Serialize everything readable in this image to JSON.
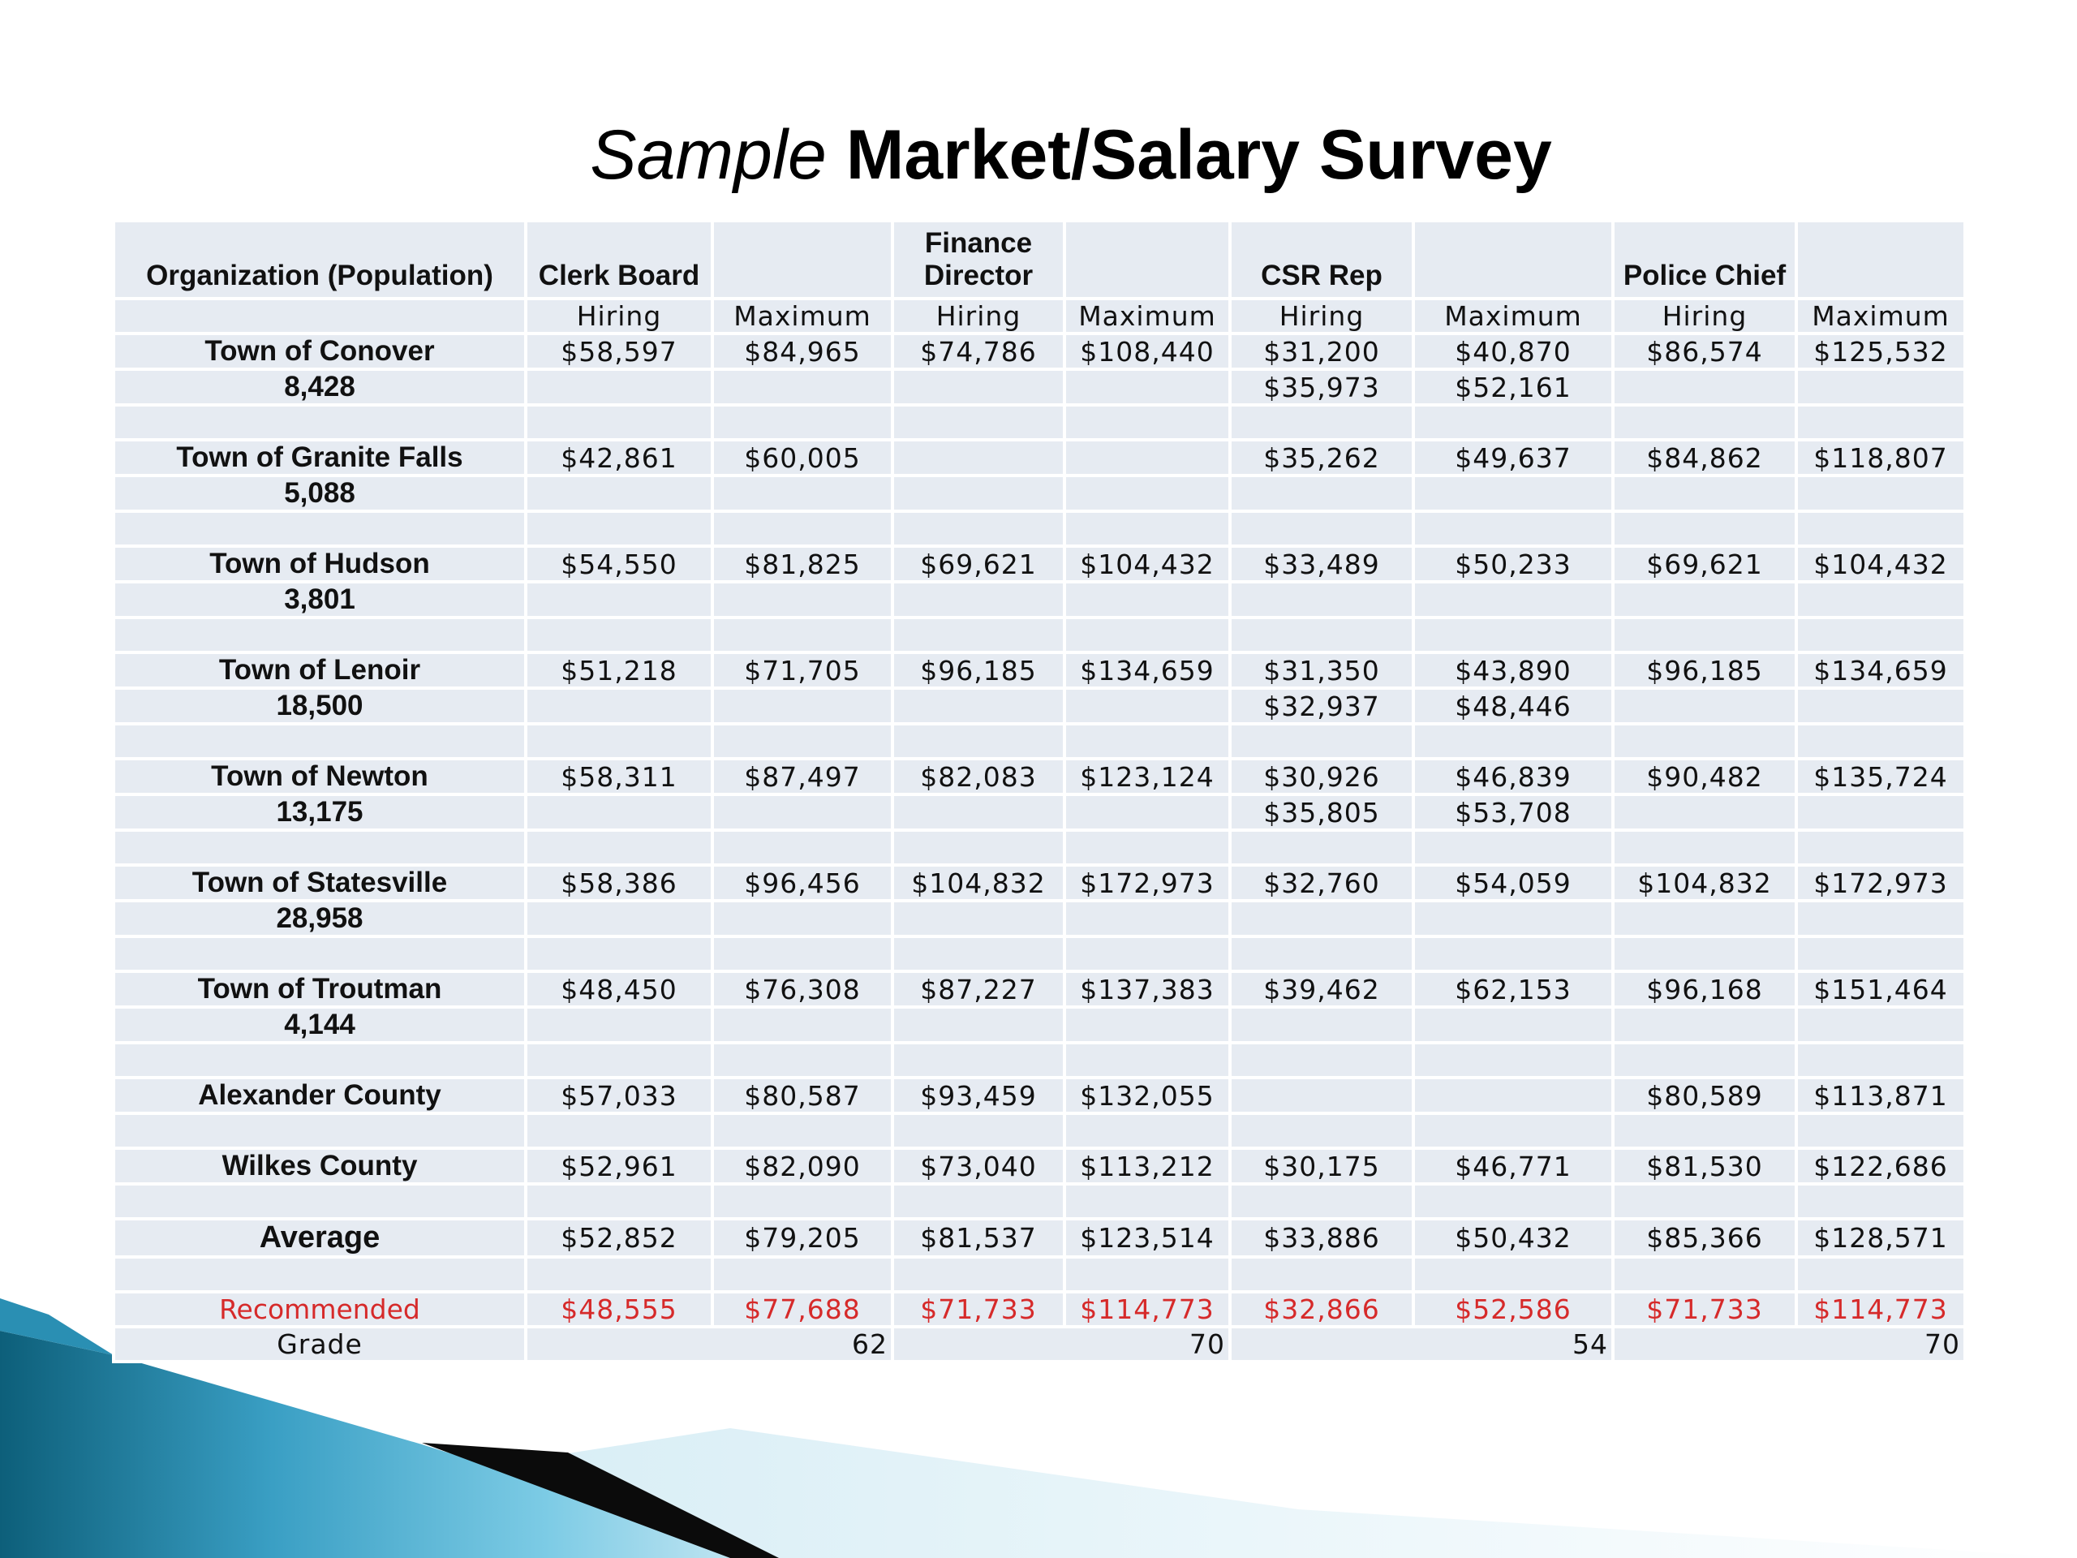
{
  "title": {
    "italic": "Sample",
    "bold": "Market/Salary Survey"
  },
  "headers": {
    "organization": "Organization (Population)",
    "clerk_board": "Clerk Board",
    "finance_director": "Finance Director",
    "csr_rep": "CSR Rep",
    "police_chief": "Police Chief"
  },
  "subheaders": [
    "Hiring",
    "Maximum",
    "Hiring",
    "Maximum",
    "Hiring",
    "Maximum",
    "Hiring",
    "Maximum"
  ],
  "rows": [
    {
      "name": "Town of Conover",
      "values": [
        "$58,597",
        "$84,965",
        "$74,786",
        "$108,440",
        "$31,200",
        "$40,870",
        "$86,574",
        "$125,532"
      ]
    },
    {
      "name": "8,428",
      "values": [
        "",
        "",
        "",
        "",
        "$35,973",
        "$52,161",
        "",
        ""
      ]
    },
    {
      "name": "",
      "values": [
        "",
        "",
        "",
        "",
        "",
        "",
        "",
        ""
      ]
    },
    {
      "name": "Town of Granite Falls",
      "values": [
        "$42,861",
        "$60,005",
        "",
        "",
        "$35,262",
        "$49,637",
        "$84,862",
        "$118,807"
      ]
    },
    {
      "name": "5,088",
      "values": [
        "",
        "",
        "",
        "",
        "",
        "",
        "",
        ""
      ]
    },
    {
      "name": "",
      "values": [
        "",
        "",
        "",
        "",
        "",
        "",
        "",
        ""
      ]
    },
    {
      "name": "Town of Hudson",
      "values": [
        "$54,550",
        "$81,825",
        "$69,621",
        "$104,432",
        "$33,489",
        "$50,233",
        "$69,621",
        "$104,432"
      ]
    },
    {
      "name": "3,801",
      "values": [
        "",
        "",
        "",
        "",
        "",
        "",
        "",
        ""
      ]
    },
    {
      "name": "",
      "values": [
        "",
        "",
        "",
        "",
        "",
        "",
        "",
        ""
      ]
    },
    {
      "name": "Town of Lenoir",
      "values": [
        "$51,218",
        "$71,705",
        "$96,185",
        "$134,659",
        "$31,350",
        "$43,890",
        "$96,185",
        "$134,659"
      ]
    },
    {
      "name": "18,500",
      "values": [
        "",
        "",
        "",
        "",
        "$32,937",
        "$48,446",
        "",
        ""
      ]
    },
    {
      "name": "",
      "values": [
        "",
        "",
        "",
        "",
        "",
        "",
        "",
        ""
      ]
    },
    {
      "name": "Town of Newton",
      "values": [
        "$58,311",
        "$87,497",
        "$82,083",
        "$123,124",
        "$30,926",
        "$46,839",
        "$90,482",
        "$135,724"
      ]
    },
    {
      "name": "13,175",
      "values": [
        "",
        "",
        "",
        "",
        "$35,805",
        "$53,708",
        "",
        ""
      ]
    },
    {
      "name": "",
      "values": [
        "",
        "",
        "",
        "",
        "",
        "",
        "",
        ""
      ]
    },
    {
      "name": "Town of Statesville",
      "values": [
        "$58,386",
        "$96,456",
        "$104,832",
        "$172,973",
        "$32,760",
        "$54,059",
        "$104,832",
        "$172,973"
      ]
    },
    {
      "name": "28,958",
      "values": [
        "",
        "",
        "",
        "",
        "",
        "",
        "",
        ""
      ]
    },
    {
      "name": "",
      "values": [
        "",
        "",
        "",
        "",
        "",
        "",
        "",
        ""
      ]
    },
    {
      "name": "Town of Troutman",
      "values": [
        "$48,450",
        "$76,308",
        "$87,227",
        "$137,383",
        "$39,462",
        "$62,153",
        "$96,168",
        "$151,464"
      ]
    },
    {
      "name": "4,144",
      "values": [
        "",
        "",
        "",
        "",
        "",
        "",
        "",
        ""
      ]
    },
    {
      "name": "",
      "values": [
        "",
        "",
        "",
        "",
        "",
        "",
        "",
        ""
      ]
    },
    {
      "name": "Alexander County",
      "values": [
        "$57,033",
        "$80,587",
        "$93,459",
        "$132,055",
        "",
        "",
        "$80,589",
        "$113,871"
      ]
    },
    {
      "name": "",
      "values": [
        "",
        "",
        "",
        "",
        "",
        "",
        "",
        ""
      ]
    },
    {
      "name": "Wilkes County",
      "values": [
        "$52,961",
        "$82,090",
        "$73,040",
        "$113,212",
        "$30,175",
        "$46,771",
        "$81,530",
        "$122,686"
      ]
    },
    {
      "name": "",
      "values": [
        "",
        "",
        "",
        "",
        "",
        "",
        "",
        ""
      ]
    }
  ],
  "average": {
    "name": "Average",
    "values": [
      "$52,852",
      "$79,205",
      "$81,537",
      "$123,514",
      "$33,886",
      "$50,432",
      "$85,366",
      "$128,571"
    ]
  },
  "spacer": {
    "name": "",
    "values": [
      "",
      "",
      "",
      "",
      "",
      "",
      "",
      ""
    ]
  },
  "recommended": {
    "name": "Recommended",
    "values": [
      "$48,555",
      "$77,688",
      "$71,733",
      "$114,773",
      "$32,866",
      "$52,586",
      "$71,733",
      "$114,773"
    ]
  },
  "grade": {
    "label": "Grade",
    "values": [
      "62",
      "70",
      "54",
      "70"
    ]
  },
  "colors": {
    "recommended": "#d62a2a",
    "cell_bg": "#e6ebf2",
    "swoosh_dark": "#0d5f7a",
    "swoosh_light": "#58b8d8"
  }
}
